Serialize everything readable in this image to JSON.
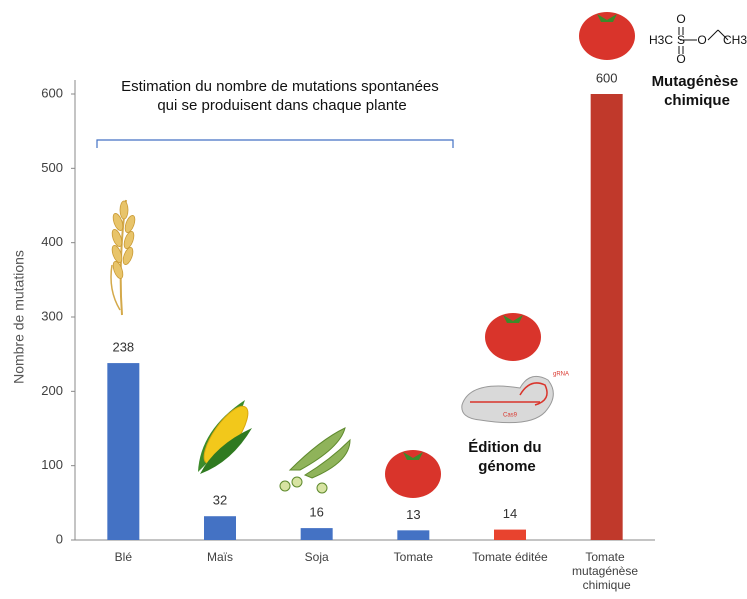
{
  "chart_data": {
    "type": "bar",
    "y_axis_label": "Nombre de mutations",
    "categories": [
      "Blé",
      "Maïs",
      "Soja",
      "Tomate",
      "Tomate éditée",
      "Tomate mutagénèse chimique"
    ],
    "values": [
      238,
      32,
      16,
      13,
      14,
      600
    ],
    "colors": [
      "#4472c4",
      "#4472c4",
      "#4472c4",
      "#4472c4",
      "#e8432e",
      "#c0392b"
    ],
    "ylim": [
      0,
      600
    ],
    "yticks": [
      0,
      100,
      200,
      300,
      400,
      500,
      600
    ],
    "annotations": {
      "bracket_title": "Estimation du nombre de mutations spontanées qui se produisent dans chaque plante",
      "genome_editing": "Édition du génome",
      "chemical_mutagenesis": "Mutagénèse chimique",
      "grna": "gRNA",
      "cas9": "Cas9",
      "formula": [
        "H3C",
        "S",
        "O",
        "O",
        "O",
        "CH3"
      ]
    }
  }
}
